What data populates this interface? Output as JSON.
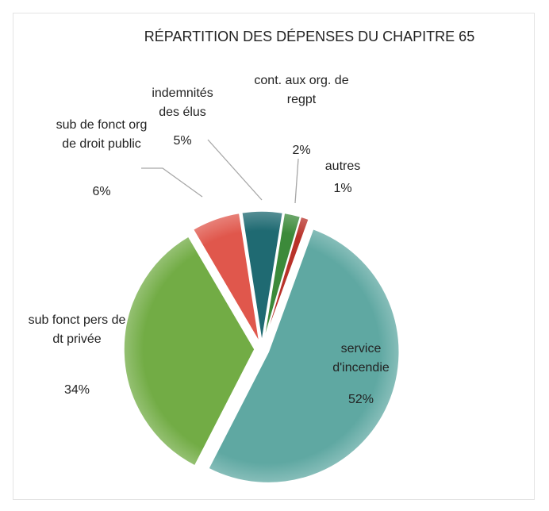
{
  "chart_data": {
    "type": "pie",
    "title": "RÉPARTITION DES DÉPENSES DU CHAPITRE 65",
    "categories": [
      "service d'incendie",
      "sub fonct pers de dt privée",
      "sub de fonct org de droit public",
      "indemnités des élus",
      "cont.  aux org. de regpt",
      "autres"
    ],
    "values": [
      52,
      34,
      6,
      5,
      2,
      1
    ],
    "value_labels": [
      "52%",
      "34%",
      "6%",
      "5%",
      "2%",
      "1%"
    ],
    "colors": [
      "#5fa8a2",
      "#72ac45",
      "#e0574c",
      "#1f6a72",
      "#3c8a3a",
      "#b8322a"
    ]
  }
}
